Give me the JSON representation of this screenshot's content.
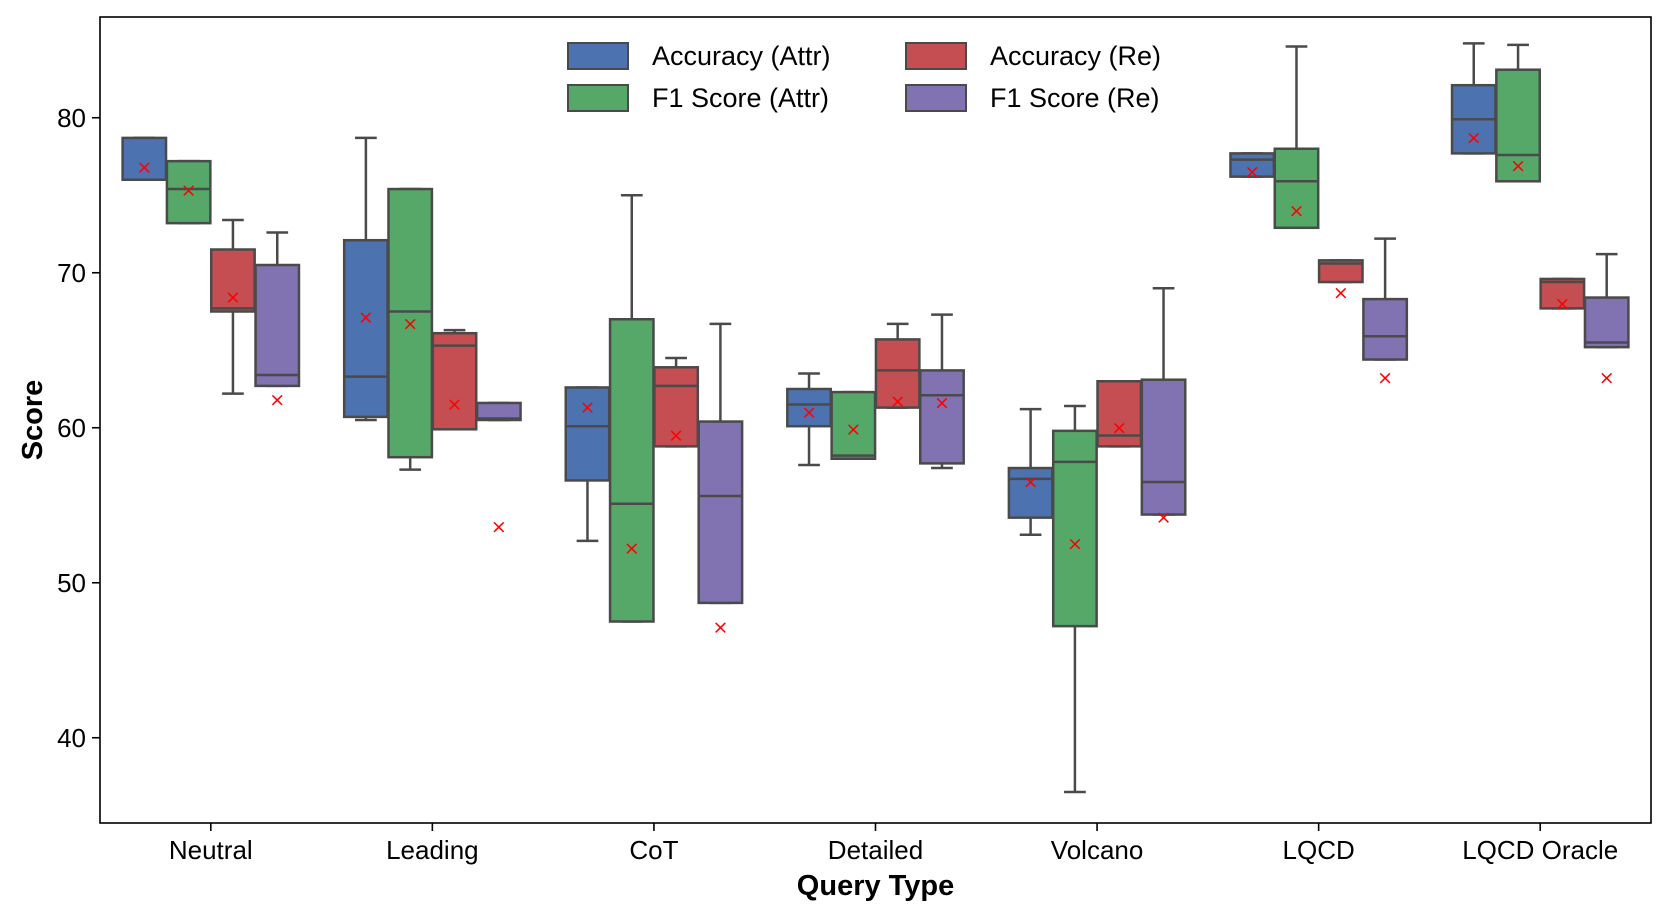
{
  "chart_data": {
    "type": "box",
    "title": "",
    "xlabel": "Query Type",
    "ylabel": "Score",
    "ylim": [
      34.5,
      86.5
    ],
    "yticks": [
      40,
      50,
      60,
      70,
      80
    ],
    "grid": false,
    "legend_position": "top-center",
    "mean_marker": "×",
    "mean_color": "#ff0000",
    "categories": [
      "Neutral",
      "Leading",
      "CoT",
      "Detailed",
      "Volcano",
      "LQCD",
      "LQCD Oracle"
    ],
    "series": [
      {
        "name": "Accuracy (Attr)",
        "color": "#4c72b0",
        "boxes": [
          {
            "whislo": 76.0,
            "q1": 76.0,
            "med": 76.0,
            "q3": 78.7,
            "whishi": 78.7,
            "mean": 76.8
          },
          {
            "whislo": 60.5,
            "q1": 60.7,
            "med": 63.3,
            "q3": 72.1,
            "whishi": 78.7,
            "mean": 67.1
          },
          {
            "whislo": 52.7,
            "q1": 56.6,
            "med": 60.1,
            "q3": 62.6,
            "whishi": 62.6,
            "mean": 61.3
          },
          {
            "whislo": 57.6,
            "q1": 60.1,
            "med": 61.5,
            "q3": 62.5,
            "whishi": 63.5,
            "mean": 61.0
          },
          {
            "whislo": 53.1,
            "q1": 54.2,
            "med": 56.7,
            "q3": 57.4,
            "whishi": 61.2,
            "mean": 56.5
          },
          {
            "whislo": 76.2,
            "q1": 76.2,
            "med": 77.3,
            "q3": 77.7,
            "whishi": 77.7,
            "mean": 76.5
          },
          {
            "whislo": 77.7,
            "q1": 77.7,
            "med": 79.9,
            "q3": 82.1,
            "whishi": 84.8,
            "mean": 78.7
          }
        ]
      },
      {
        "name": "F1 Score (Attr)",
        "color": "#55a868",
        "boxes": [
          {
            "whislo": 73.2,
            "q1": 73.2,
            "med": 75.4,
            "q3": 77.2,
            "whishi": 77.2,
            "mean": 75.3
          },
          {
            "whislo": 57.3,
            "q1": 58.1,
            "med": 67.5,
            "q3": 75.4,
            "whishi": 75.4,
            "mean": 66.7
          },
          {
            "whislo": 47.5,
            "q1": 47.5,
            "med": 55.1,
            "q3": 67.0,
            "whishi": 75.0,
            "mean": 52.2
          },
          {
            "whislo": 58.0,
            "q1": 58.0,
            "med": 58.2,
            "q3": 62.3,
            "whishi": 62.3,
            "mean": 59.9
          },
          {
            "whislo": 36.5,
            "q1": 47.2,
            "med": 57.8,
            "q3": 59.8,
            "whishi": 61.4,
            "mean": 52.5
          },
          {
            "whislo": 72.9,
            "q1": 72.9,
            "med": 75.9,
            "q3": 78.0,
            "whishi": 84.6,
            "mean": 74.0
          },
          {
            "whislo": 75.9,
            "q1": 75.9,
            "med": 77.6,
            "q3": 83.1,
            "whishi": 84.7,
            "mean": 76.9
          }
        ]
      },
      {
        "name": "Accuracy (Re)",
        "color": "#c44e52",
        "boxes": [
          {
            "whislo": 62.2,
            "q1": 67.5,
            "med": 67.7,
            "q3": 71.5,
            "whishi": 73.4,
            "mean": 68.4
          },
          {
            "whislo": 59.9,
            "q1": 59.9,
            "med": 65.3,
            "q3": 66.1,
            "whishi": 66.3,
            "mean": 61.5
          },
          {
            "whislo": 58.8,
            "q1": 58.8,
            "med": 62.7,
            "q3": 63.9,
            "whishi": 64.5,
            "mean": 59.5
          },
          {
            "whislo": 61.3,
            "q1": 61.3,
            "med": 63.7,
            "q3": 65.7,
            "whishi": 66.7,
            "mean": 61.7
          },
          {
            "whislo": 58.8,
            "q1": 58.8,
            "med": 59.5,
            "q3": 63.0,
            "whishi": 63.0,
            "mean": 60.0
          },
          {
            "whislo": 69.4,
            "q1": 69.4,
            "med": 70.6,
            "q3": 70.8,
            "whishi": 70.8,
            "mean": 68.7
          },
          {
            "whislo": 67.7,
            "q1": 67.7,
            "med": 69.4,
            "q3": 69.6,
            "whishi": 69.6,
            "mean": 68.0
          }
        ]
      },
      {
        "name": "F1 Score (Re)",
        "color": "#8172b2",
        "boxes": [
          {
            "whislo": 62.7,
            "q1": 62.7,
            "med": 63.4,
            "q3": 70.5,
            "whishi": 72.6,
            "mean": 61.8
          },
          {
            "whislo": 60.5,
            "q1": 60.5,
            "med": 60.6,
            "q3": 61.6,
            "whishi": 61.6,
            "mean": 53.6
          },
          {
            "whislo": 48.7,
            "q1": 48.7,
            "med": 55.6,
            "q3": 60.4,
            "whishi": 66.7,
            "mean": 47.1
          },
          {
            "whislo": 57.4,
            "q1": 57.7,
            "med": 62.1,
            "q3": 63.7,
            "whishi": 67.3,
            "mean": 61.6
          },
          {
            "whislo": 54.4,
            "q1": 54.4,
            "med": 56.5,
            "q3": 63.1,
            "whishi": 69.0,
            "mean": 54.2
          },
          {
            "whislo": 64.4,
            "q1": 64.4,
            "med": 65.9,
            "q3": 68.3,
            "whishi": 72.2,
            "mean": 63.2
          },
          {
            "whislo": 65.2,
            "q1": 65.2,
            "med": 65.5,
            "q3": 68.4,
            "whishi": 71.2,
            "mean": 63.2
          }
        ]
      }
    ],
    "legend": [
      "Accuracy (Attr)",
      "F1 Score (Attr)",
      "Accuracy (Re)",
      "F1 Score (Re)"
    ]
  }
}
